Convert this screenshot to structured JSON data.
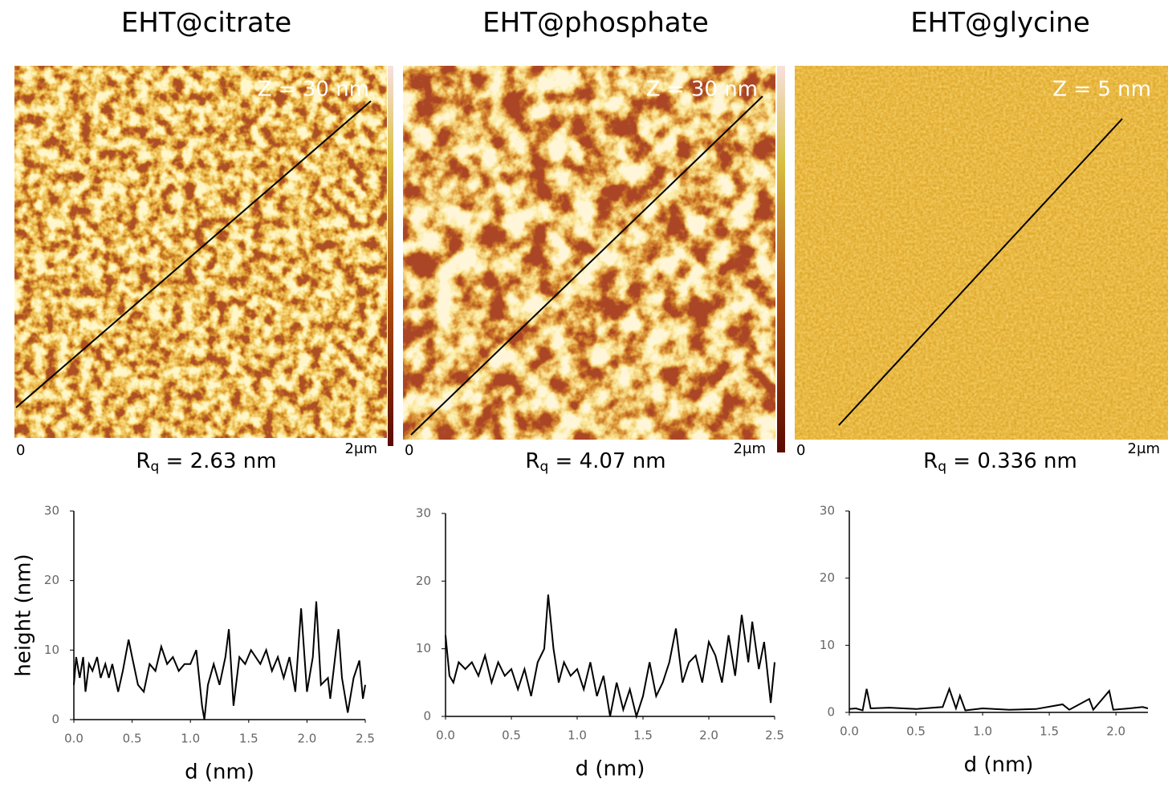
{
  "images": [
    {
      "title": "EHT@citrate",
      "z_label": "Z = 30 nm",
      "origin_label": "0",
      "size_label": "2μm",
      "rq_symbol": "R",
      "rq_sub": "q",
      "rq_text": " = 2.63 nm"
    },
    {
      "title": "EHT@phosphate",
      "z_label": "Z = 30 nm",
      "origin_label": "0",
      "size_label": "2μm",
      "rq_symbol": "R",
      "rq_sub": "q",
      "rq_text": " = 4.07 nm"
    },
    {
      "title": "EHT@glycine",
      "z_label": "Z = 5 nm",
      "origin_label": "0",
      "size_label": "2μm",
      "rq_symbol": "R",
      "rq_sub": "q",
      "rq_text": " = 0.336 nm"
    }
  ],
  "chart_data": [
    {
      "type": "line",
      "x_label": "d (nm)",
      "y_label": "height (nm)",
      "color": "#000000",
      "xlim": [
        0,
        2.5
      ],
      "ylim": [
        0,
        30
      ],
      "xticks": [
        {
          "value": 0,
          "label": "0.0"
        },
        0.5,
        {
          "value": 1,
          "label": "1.0"
        },
        1.5,
        {
          "value": 2,
          "label": "2.0"
        },
        2.5
      ],
      "yticks": [
        0,
        10,
        20,
        30
      ],
      "x": [
        0,
        0.02,
        0.05,
        0.08,
        0.1,
        0.13,
        0.16,
        0.2,
        0.23,
        0.27,
        0.3,
        0.33,
        0.38,
        0.42,
        0.47,
        0.5,
        0.55,
        0.6,
        0.65,
        0.7,
        0.75,
        0.8,
        0.85,
        0.9,
        0.95,
        1.0,
        1.05,
        1.1,
        1.12,
        1.15,
        1.2,
        1.25,
        1.3,
        1.33,
        1.37,
        1.42,
        1.47,
        1.52,
        1.6,
        1.65,
        1.7,
        1.75,
        1.8,
        1.85,
        1.9,
        1.95,
        2.0,
        2.05,
        2.08,
        2.12,
        2.18,
        2.2,
        2.27,
        2.3,
        2.35,
        2.4,
        2.45,
        2.48,
        2.5
      ],
      "values": [
        5,
        9,
        6,
        9,
        4,
        8,
        7,
        9,
        6,
        8,
        6,
        8,
        4,
        7,
        11.5,
        9,
        5,
        4,
        8,
        7,
        10.5,
        8,
        9,
        7,
        8,
        8,
        10,
        2,
        0,
        5,
        8,
        5,
        9,
        13,
        2,
        9,
        8,
        10,
        8,
        10,
        7,
        9,
        6,
        9,
        4,
        16,
        4,
        9,
        17,
        5,
        6,
        3,
        13,
        6,
        1,
        6,
        8.5,
        3,
        5
      ]
    },
    {
      "type": "line",
      "x_label": "d (nm)",
      "color": "#000000",
      "xlim": [
        0,
        2.5
      ],
      "ylim": [
        0,
        30
      ],
      "xticks": [
        {
          "value": 0,
          "label": "0.0"
        },
        0.5,
        {
          "value": 1,
          "label": "1.0"
        },
        1.5,
        {
          "value": 2,
          "label": "2.0"
        },
        2.5
      ],
      "yticks": [
        0,
        10,
        20,
        30
      ],
      "x": [
        0,
        0.03,
        0.06,
        0.1,
        0.15,
        0.2,
        0.25,
        0.3,
        0.35,
        0.4,
        0.45,
        0.5,
        0.55,
        0.6,
        0.65,
        0.7,
        0.75,
        0.78,
        0.82,
        0.86,
        0.9,
        0.95,
        1.0,
        1.05,
        1.1,
        1.15,
        1.2,
        1.25,
        1.3,
        1.35,
        1.4,
        1.45,
        1.5,
        1.55,
        1.6,
        1.65,
        1.7,
        1.75,
        1.8,
        1.85,
        1.9,
        1.95,
        2.0,
        2.05,
        2.1,
        2.15,
        2.2,
        2.25,
        2.3,
        2.33,
        2.38,
        2.42,
        2.47,
        2.5
      ],
      "values": [
        12,
        6,
        5,
        8,
        7,
        8,
        6,
        9,
        5,
        8,
        6,
        7,
        4,
        7,
        3,
        8,
        10,
        18,
        10,
        5,
        8,
        6,
        7,
        4,
        8,
        3,
        6,
        0,
        5,
        1,
        4,
        0,
        3,
        8,
        3,
        5,
        8,
        13,
        5,
        8,
        9,
        5,
        11,
        9,
        5,
        12,
        6,
        15,
        8,
        14,
        7,
        11,
        2,
        8
      ]
    },
    {
      "type": "line",
      "x_label": "d (nm)",
      "color": "#000000",
      "xlim": [
        0,
        2.24
      ],
      "ylim": [
        0,
        30
      ],
      "xticks": [
        {
          "value": 0,
          "label": "0.0"
        },
        0.5,
        {
          "value": 1,
          "label": "1.0"
        },
        1.5,
        {
          "value": 2,
          "label": "2.0"
        }
      ],
      "yticks": [
        0,
        10,
        20,
        30
      ],
      "x": [
        0,
        0.05,
        0.1,
        0.13,
        0.16,
        0.3,
        0.5,
        0.7,
        0.75,
        0.8,
        0.83,
        0.87,
        1.0,
        1.2,
        1.4,
        1.6,
        1.65,
        1.8,
        1.83,
        1.95,
        1.98,
        2.1,
        2.2,
        2.24
      ],
      "values": [
        0.5,
        0.6,
        0.3,
        3.5,
        0.6,
        0.7,
        0.5,
        0.8,
        3.5,
        0.6,
        2.5,
        0.3,
        0.6,
        0.4,
        0.5,
        1.2,
        0.4,
        2.0,
        0.4,
        3.2,
        0.4,
        0.6,
        0.8,
        0.6
      ]
    }
  ]
}
